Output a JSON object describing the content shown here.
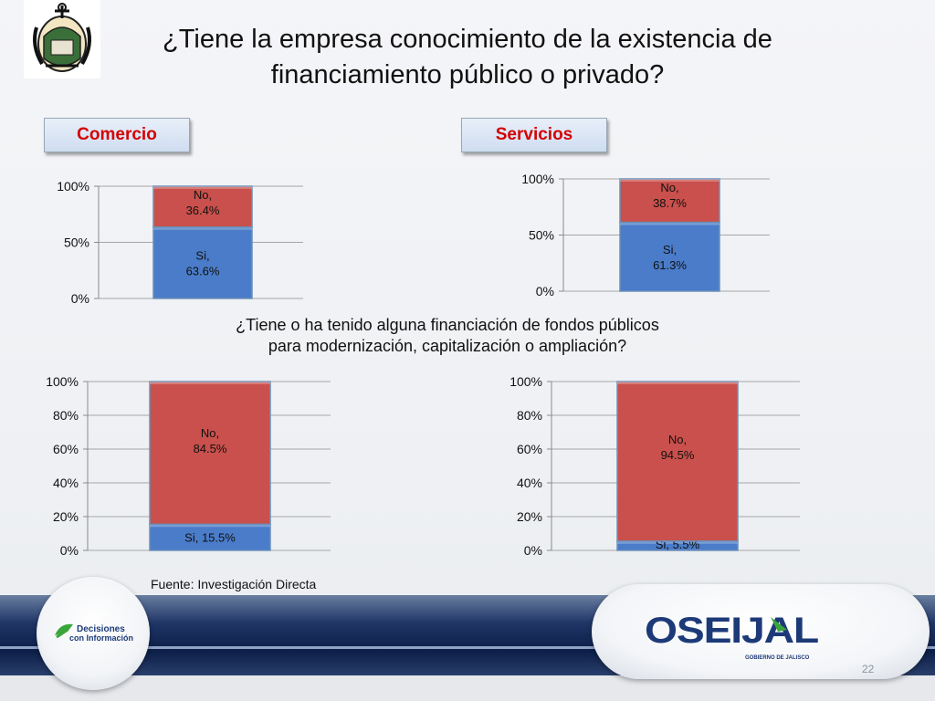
{
  "header": {
    "title_line1": "¿Tiene la empresa conocimiento de la existencia de",
    "title_line2": "financiamiento público o privado?"
  },
  "sections": {
    "left_label": "Comercio",
    "right_label": "Servicios"
  },
  "question": {
    "line1": "¿Tiene o ha tenido alguna financiación de fondos públicos",
    "line2": "para modernización, capitalización o ampliación?"
  },
  "chart_data": [
    {
      "type": "bar",
      "stacked": true,
      "segment": "Comercio",
      "categories": [
        ""
      ],
      "series": [
        {
          "name": "Si",
          "values": [
            63.6
          ],
          "label": [
            "Si,",
            "63.6%"
          ],
          "color": "#4a7cc9"
        },
        {
          "name": "No",
          "values": [
            36.4
          ],
          "label": [
            "No,",
            "36.4%"
          ],
          "color": "#c9504c"
        }
      ],
      "yticks": [
        "100%",
        "50%",
        "0%"
      ],
      "ylim": [
        0,
        100
      ]
    },
    {
      "type": "bar",
      "stacked": true,
      "segment": "Servicios",
      "categories": [
        ""
      ],
      "series": [
        {
          "name": "Si",
          "values": [
            61.3
          ],
          "label": [
            "Si,",
            "61.3%"
          ],
          "color": "#4a7cc9"
        },
        {
          "name": "No",
          "values": [
            38.7
          ],
          "label": [
            "No,",
            "38.7%"
          ],
          "color": "#c9504c"
        }
      ],
      "yticks": [
        "100%",
        "50%",
        "0%"
      ],
      "ylim": [
        0,
        100
      ]
    },
    {
      "type": "bar",
      "stacked": true,
      "segment": "Comercio",
      "categories": [
        ""
      ],
      "series": [
        {
          "name": "Si",
          "values": [
            15.5
          ],
          "label": [
            "Si, 15.5%"
          ],
          "color": "#4a7cc9"
        },
        {
          "name": "No",
          "values": [
            84.5
          ],
          "label": [
            "No,",
            "84.5%"
          ],
          "color": "#c9504c"
        }
      ],
      "yticks": [
        "100%",
        "80%",
        "60%",
        "40%",
        "20%",
        "0%"
      ],
      "ylim": [
        0,
        100
      ]
    },
    {
      "type": "bar",
      "stacked": true,
      "segment": "Servicios",
      "categories": [
        ""
      ],
      "series": [
        {
          "name": "Si",
          "values": [
            5.5
          ],
          "label": [
            "Si, 5.5%"
          ],
          "color": "#4a7cc9"
        },
        {
          "name": "No",
          "values": [
            94.5
          ],
          "label": [
            "No,",
            "94.5%"
          ],
          "color": "#c9504c"
        }
      ],
      "yticks": [
        "100%",
        "80%",
        "60%",
        "40%",
        "20%",
        "0%"
      ],
      "ylim": [
        0,
        100
      ]
    }
  ],
  "source": "Fuente: Investigación Directa",
  "footer": {
    "left_logo_line1": "Decisiones",
    "left_logo_line2": "con Información",
    "right_logo_text": "OSEIJAL",
    "right_logo_sub": "GOBIERNO DE JALISCO",
    "page_number": "22"
  },
  "colors": {
    "section_label_text": "#d40000",
    "bar_si": "#4a7cc9",
    "bar_no": "#c9504c",
    "footer_navy": "#0d1f48",
    "logo_green": "#3aa63a",
    "logo_navy": "#1d3a78"
  },
  "icons": [
    "coat-of-arms-logo",
    "decisiones-con-informacion-logo",
    "oseijal-logo"
  ]
}
